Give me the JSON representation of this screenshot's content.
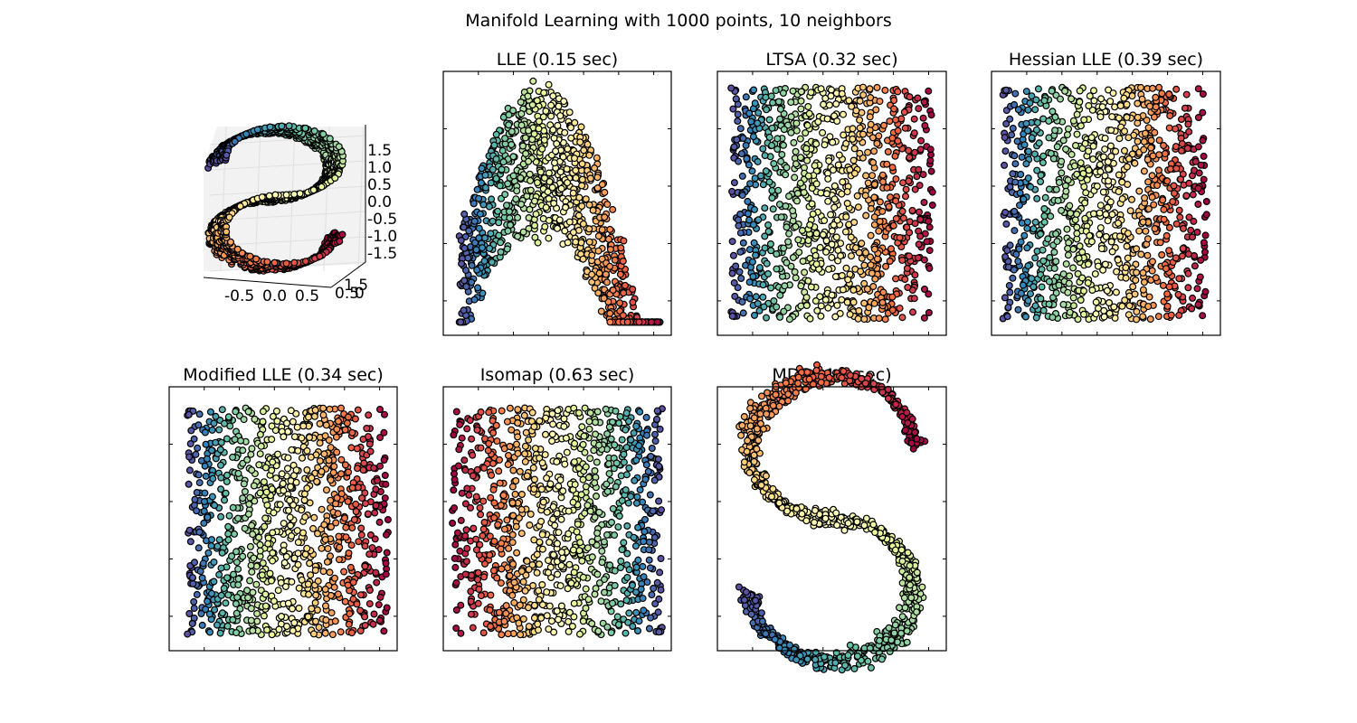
{
  "figure": {
    "title": "Manifold Learning with 1000 points, 10 neighbors"
  },
  "colormap": {
    "name": "Spectral",
    "stops": [
      "#9e0142",
      "#d53e4f",
      "#f46d43",
      "#fdae61",
      "#fee08b",
      "#ffffbf",
      "#e6f598",
      "#abdda4",
      "#66c2a5",
      "#3288bd",
      "#5e4fa2"
    ]
  },
  "chart_data": [
    {
      "type": "scatter",
      "panel": "3d",
      "title": "",
      "ztick_labels": [
        "1.5",
        "1.0",
        "0.5",
        "0.0",
        "-0.5",
        "-1.0",
        "-1.5"
      ],
      "xtick_labels": [
        "-0.5",
        "0.0",
        "0.5"
      ],
      "ytick_labels": [
        "1.5",
        "0.5",
        "0"
      ],
      "n_points": 1000,
      "point_color_variable": "position along S curve (0 = blue start, 1 = red end)"
    },
    {
      "type": "scatter",
      "panel": "lle",
      "title": "LLE (0.15 sec)",
      "n_points": 1000,
      "shape": "arch"
    },
    {
      "type": "scatter",
      "panel": "ltsa",
      "title": "LTSA (0.32 sec)",
      "n_points": 1000,
      "shape": "rectangle, color left-to-right blue to red"
    },
    {
      "type": "scatter",
      "panel": "hessian",
      "title": "Hessian LLE (0.39 sec)",
      "n_points": 1000,
      "shape": "rectangle, color left-to-right blue to red"
    },
    {
      "type": "scatter",
      "panel": "mlle",
      "title": "Modified LLE (0.34 sec)",
      "n_points": 1000,
      "shape": "rectangle, color left-to-right blue to red"
    },
    {
      "type": "scatter",
      "panel": "isomap",
      "title": "Isomap (0.63 sec)",
      "n_points": 1000,
      "shape": "rectangle, color left-to-right red to blue"
    },
    {
      "type": "scatter",
      "panel": "mds",
      "title": "MDS (4.5 sec)",
      "n_points": 1000,
      "shape": "S curve"
    }
  ]
}
